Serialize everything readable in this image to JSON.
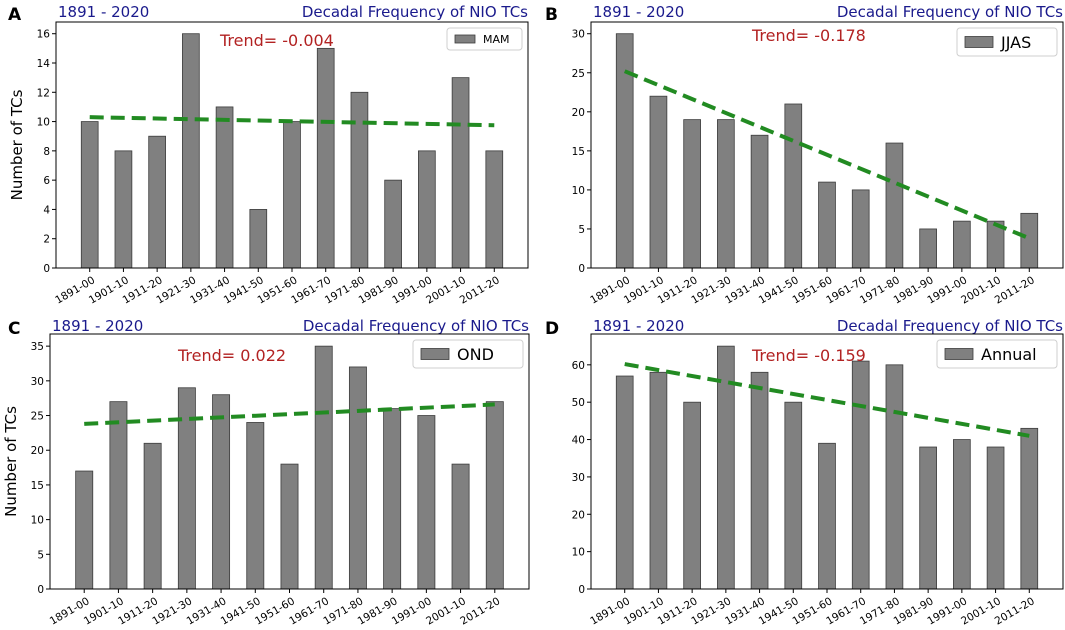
{
  "figure": {
    "period_label": "1891 - 2020",
    "title": "Decadal Frequency of NIO TCs",
    "ylabel": "Number of TCs",
    "bar_color": "#808080",
    "trend_color": "#228b22",
    "trend_text_color": "#b22222",
    "title_color": "#1a1a8c"
  },
  "chart_data": [
    {
      "panel": "A",
      "type": "bar",
      "legend": "MAM",
      "trend_label": "Trend= -0.004",
      "categories": [
        "1891-00",
        "1901-10",
        "1911-20",
        "1921-30",
        "1931-40",
        "1941-50",
        "1951-60",
        "1961-70",
        "1971-80",
        "1981-90",
        "1991-00",
        "2001-10",
        "2011-20"
      ],
      "values": [
        10,
        8,
        9,
        16,
        11,
        4,
        10,
        15,
        12,
        6,
        8,
        13,
        8
      ],
      "trend_line": [
        10.3,
        9.75
      ],
      "ylim": [
        0,
        16.8
      ],
      "yticks": [
        0,
        2,
        4,
        6,
        8,
        10,
        12,
        14,
        16
      ],
      "ylabel": "Number of TCs"
    },
    {
      "panel": "B",
      "type": "bar",
      "legend": "JJAS",
      "trend_label": "Trend= -0.178",
      "categories": [
        "1891-00",
        "1901-10",
        "1911-20",
        "1921-30",
        "1931-40",
        "1941-50",
        "1951-60",
        "1961-70",
        "1971-80",
        "1981-90",
        "1991-00",
        "2001-10",
        "2011-20"
      ],
      "values": [
        30,
        22,
        19,
        19,
        17,
        21,
        11,
        10,
        16,
        5,
        6,
        6,
        7
      ],
      "trend_line": [
        25.2,
        3.8
      ],
      "ylim": [
        0,
        31.5
      ],
      "yticks": [
        0,
        5,
        10,
        15,
        20,
        25,
        30
      ],
      "ylabel": ""
    },
    {
      "panel": "C",
      "type": "bar",
      "legend": "OND",
      "trend_label": "Trend= 0.022",
      "categories": [
        "1891-00",
        "1901-10",
        "1911-20",
        "1921-30",
        "1931-40",
        "1941-50",
        "1951-60",
        "1961-70",
        "1971-80",
        "1981-90",
        "1991-00",
        "2001-10",
        "2011-20"
      ],
      "values": [
        17,
        27,
        21,
        29,
        28,
        24,
        18,
        35,
        32,
        26,
        25,
        18,
        27
      ],
      "trend_line": [
        23.8,
        26.6
      ],
      "ylim": [
        0,
        36.75
      ],
      "yticks": [
        0,
        5,
        10,
        15,
        20,
        25,
        30,
        35
      ],
      "ylabel": "Number of TCs"
    },
    {
      "panel": "D",
      "type": "bar",
      "legend": "Annual",
      "trend_label": "Trend= -0.159",
      "categories": [
        "1891-00",
        "1901-10",
        "1911-20",
        "1921-30",
        "1931-40",
        "1941-50",
        "1951-60",
        "1961-70",
        "1971-80",
        "1981-90",
        "1991-00",
        "2001-10",
        "2011-20"
      ],
      "values": [
        57,
        58,
        50,
        65,
        58,
        50,
        39,
        61,
        60,
        38,
        40,
        38,
        43
      ],
      "trend_line": [
        60.2,
        41.0
      ],
      "ylim": [
        0,
        68.25
      ],
      "yticks": [
        0,
        10,
        20,
        30,
        40,
        50,
        60
      ],
      "ylabel": ""
    }
  ]
}
